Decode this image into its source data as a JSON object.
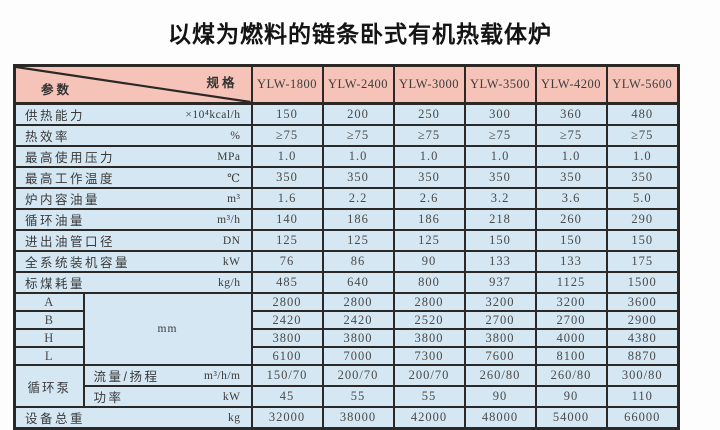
{
  "title": "以煤为燃料的链条卧式有机热载体炉",
  "colors": {
    "header_bg": "#f6c3b9",
    "body_bg": "#d4e7f3",
    "border": "#2b2826"
  },
  "table": {
    "corner": {
      "top_right": "规格",
      "bottom_left": "参数"
    },
    "models": [
      "YLW-1800",
      "YLW-2400",
      "YLW-3000",
      "YLW-3500",
      "YLW-4200",
      "YLW-5600"
    ],
    "rows": [
      {
        "label": "供热能力",
        "unit": "×10⁴kcal/h",
        "values": [
          "150",
          "200",
          "250",
          "300",
          "360",
          "480"
        ]
      },
      {
        "label": "热效率",
        "unit": "%",
        "values": [
          "≥75",
          "≥75",
          "≥75",
          "≥75",
          "≥75",
          "≥75"
        ]
      },
      {
        "label": "最高使用压力",
        "unit": "MPa",
        "values": [
          "1.0",
          "1.0",
          "1.0",
          "1.0",
          "1.0",
          "1.0"
        ]
      },
      {
        "label": "最高工作温度",
        "unit": "℃",
        "values": [
          "350",
          "350",
          "350",
          "350",
          "350",
          "350"
        ]
      },
      {
        "label": "炉内容油量",
        "unit": "m³",
        "values": [
          "1.6",
          "2.2",
          "2.6",
          "3.2",
          "3.6",
          "5.0"
        ]
      },
      {
        "label": "循环油量",
        "unit": "m³/h",
        "values": [
          "140",
          "186",
          "186",
          "218",
          "260",
          "290"
        ]
      },
      {
        "label": "进出油管口径",
        "unit": "DN",
        "values": [
          "125",
          "125",
          "125",
          "150",
          "150",
          "150"
        ]
      },
      {
        "label": "全系统装机容量",
        "unit": "kW",
        "values": [
          "76",
          "86",
          "90",
          "133",
          "133",
          "175"
        ]
      },
      {
        "label": "标煤耗量",
        "unit": "kg/h",
        "values": [
          "485",
          "640",
          "800",
          "937",
          "1125",
          "1500"
        ]
      }
    ],
    "dimensions": {
      "unit": "mm",
      "rows": [
        {
          "label": "A",
          "values": [
            "2800",
            "2800",
            "2800",
            "3200",
            "3200",
            "3600"
          ]
        },
        {
          "label": "B",
          "values": [
            "2420",
            "2420",
            "2520",
            "2700",
            "2700",
            "2900"
          ]
        },
        {
          "label": "H",
          "values": [
            "3800",
            "3800",
            "3800",
            "3800",
            "4000",
            "4380"
          ]
        },
        {
          "label": "L",
          "values": [
            "6100",
            "7000",
            "7300",
            "7600",
            "8100",
            "8870"
          ]
        }
      ]
    },
    "pump": {
      "label": "循环泵",
      "rows": [
        {
          "label": "流量/扬程",
          "unit": "m³/h/m",
          "values": [
            "150/70",
            "200/70",
            "200/70",
            "260/80",
            "260/80",
            "300/80"
          ]
        },
        {
          "label": "功率",
          "unit": "kW",
          "values": [
            "45",
            "55",
            "55",
            "90",
            "90",
            "110"
          ]
        }
      ]
    },
    "total": {
      "label": "设备总重",
      "unit": "kg",
      "values": [
        "32000",
        "38000",
        "42000",
        "48000",
        "54000",
        "66000"
      ]
    }
  }
}
